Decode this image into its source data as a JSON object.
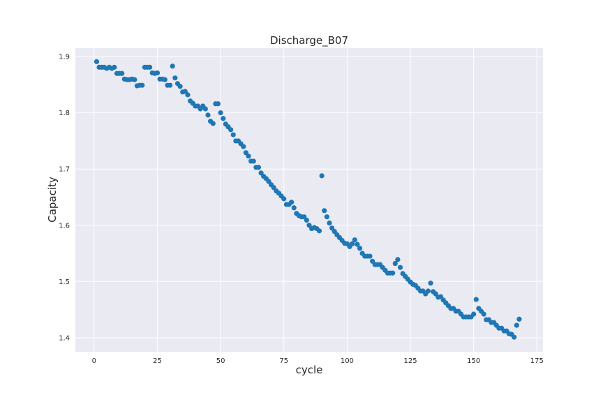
{
  "chart_data": {
    "type": "scatter",
    "title": "Discharge_B07",
    "xlabel": "cycle",
    "ylabel": "Capacity",
    "xlim": [
      -7.4,
      177.4
    ],
    "ylim": [
      1.375,
      1.915
    ],
    "x_ticks": [
      0,
      25,
      50,
      75,
      100,
      125,
      150,
      175
    ],
    "x_tick_labels": [
      "0",
      "25",
      "50",
      "75",
      "100",
      "125",
      "150",
      "175"
    ],
    "y_ticks": [
      1.4,
      1.5,
      1.6,
      1.7,
      1.8,
      1.9
    ],
    "y_tick_labels": [
      "1.4",
      "1.5",
      "1.6",
      "1.7",
      "1.8",
      "1.9"
    ],
    "grid": true,
    "background": "#eaeaf2",
    "marker_color": "#1f77b4",
    "series": [
      {
        "x": [
          1,
          2,
          3,
          4,
          5,
          6,
          7,
          8,
          9,
          10,
          11,
          12,
          13,
          14,
          15,
          16,
          17,
          18,
          19,
          20,
          21,
          22,
          23,
          24,
          25,
          26,
          27,
          28,
          29,
          30,
          31,
          32,
          33,
          34,
          35,
          36,
          37,
          38,
          39,
          40,
          41,
          42,
          43,
          44,
          45,
          46,
          47,
          48,
          49,
          50,
          51,
          52,
          53,
          54,
          55,
          56,
          57,
          58,
          59,
          60,
          61,
          62,
          63,
          64,
          65,
          66,
          67,
          68,
          69,
          70,
          71,
          72,
          73,
          74,
          75,
          76,
          77,
          78,
          79,
          80,
          81,
          82,
          83,
          84,
          85,
          86,
          87,
          88,
          89,
          90,
          91,
          92,
          93,
          94,
          95,
          96,
          97,
          98,
          99,
          100,
          101,
          102,
          103,
          104,
          105,
          106,
          107,
          108,
          109,
          110,
          111,
          112,
          113,
          114,
          115,
          116,
          117,
          118,
          119,
          120,
          121,
          122,
          123,
          124,
          125,
          126,
          127,
          128,
          129,
          130,
          131,
          132,
          133,
          134,
          135,
          136,
          137,
          138,
          139,
          140,
          141,
          142,
          143,
          144,
          145,
          146,
          147,
          148,
          149,
          150,
          151,
          152,
          153,
          154,
          155,
          156,
          157,
          158,
          159,
          160,
          161,
          162,
          163,
          164,
          165,
          166,
          167,
          168
        ],
        "y": [
          1.891,
          1.881,
          1.881,
          1.881,
          1.879,
          1.881,
          1.879,
          1.881,
          1.87,
          1.87,
          1.87,
          1.86,
          1.859,
          1.859,
          1.86,
          1.859,
          1.848,
          1.849,
          1.849,
          1.881,
          1.881,
          1.881,
          1.871,
          1.87,
          1.871,
          1.86,
          1.86,
          1.859,
          1.849,
          1.849,
          1.883,
          1.862,
          1.852,
          1.847,
          1.837,
          1.838,
          1.832,
          1.821,
          1.817,
          1.812,
          1.812,
          1.807,
          1.812,
          1.807,
          1.796,
          1.785,
          1.781,
          1.816,
          1.816,
          1.8,
          1.79,
          1.78,
          1.775,
          1.77,
          1.761,
          1.75,
          1.75,
          1.745,
          1.74,
          1.729,
          1.723,
          1.714,
          1.714,
          1.703,
          1.703,
          1.693,
          1.687,
          1.683,
          1.678,
          1.672,
          1.667,
          1.661,
          1.657,
          1.652,
          1.647,
          1.637,
          1.637,
          1.641,
          1.631,
          1.621,
          1.617,
          1.615,
          1.615,
          1.609,
          1.6,
          1.594,
          1.596,
          1.594,
          1.59,
          1.688,
          1.626,
          1.615,
          1.604,
          1.595,
          1.589,
          1.583,
          1.578,
          1.573,
          1.568,
          1.567,
          1.562,
          1.567,
          1.574,
          1.566,
          1.559,
          1.55,
          1.545,
          1.545,
          1.545,
          1.536,
          1.53,
          1.53,
          1.53,
          1.525,
          1.52,
          1.515,
          1.515,
          1.515,
          1.532,
          1.539,
          1.525,
          1.514,
          1.509,
          1.504,
          1.499,
          1.495,
          1.493,
          1.488,
          1.483,
          1.483,
          1.478,
          1.483,
          1.497,
          1.482,
          1.478,
          1.472,
          1.473,
          1.467,
          1.462,
          1.457,
          1.452,
          1.452,
          1.447,
          1.447,
          1.442,
          1.437,
          1.437,
          1.437,
          1.437,
          1.442,
          1.468,
          1.452,
          1.447,
          1.442,
          1.432,
          1.432,
          1.427,
          1.427,
          1.422,
          1.417,
          1.417,
          1.412,
          1.412,
          1.407,
          1.406,
          1.401,
          1.422,
          1.433
        ]
      }
    ]
  }
}
